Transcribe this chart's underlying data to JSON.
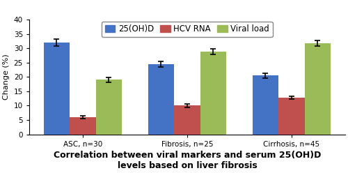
{
  "categories": [
    "ASC, n=30",
    "Fibrosis, n=25",
    "Cirrhosis, n=45"
  ],
  "series": {
    "25(OH)D": {
      "values": [
        32,
        24.5,
        20.5
      ],
      "errors": [
        1.2,
        1.0,
        0.8
      ],
      "color": "#4472C4"
    },
    "HCV RNA": {
      "values": [
        6,
        10,
        12.8
      ],
      "errors": [
        0.4,
        0.5,
        0.5
      ],
      "color": "#C0504D"
    },
    "Viral load": {
      "values": [
        19,
        28.8,
        31.8
      ],
      "errors": [
        0.8,
        1.0,
        1.0
      ],
      "color": "#9BBB59"
    }
  },
  "ylabel": "Change (%)",
  "xlabel_line1": "Correlation between viral markers and serum 25(OH)D",
  "xlabel_line2": "levels based on liver fibrosis",
  "ylim": [
    0,
    40
  ],
  "yticks": [
    0,
    5,
    10,
    15,
    20,
    25,
    30,
    35,
    40
  ],
  "legend_labels": [
    "25(OH)D",
    "HCV RNA",
    "Viral load"
  ],
  "background_color": "#FFFFFF",
  "bar_width": 0.25,
  "title_fontsize": 9,
  "axis_label_fontsize": 8,
  "tick_fontsize": 7.5,
  "legend_fontsize": 8.5
}
